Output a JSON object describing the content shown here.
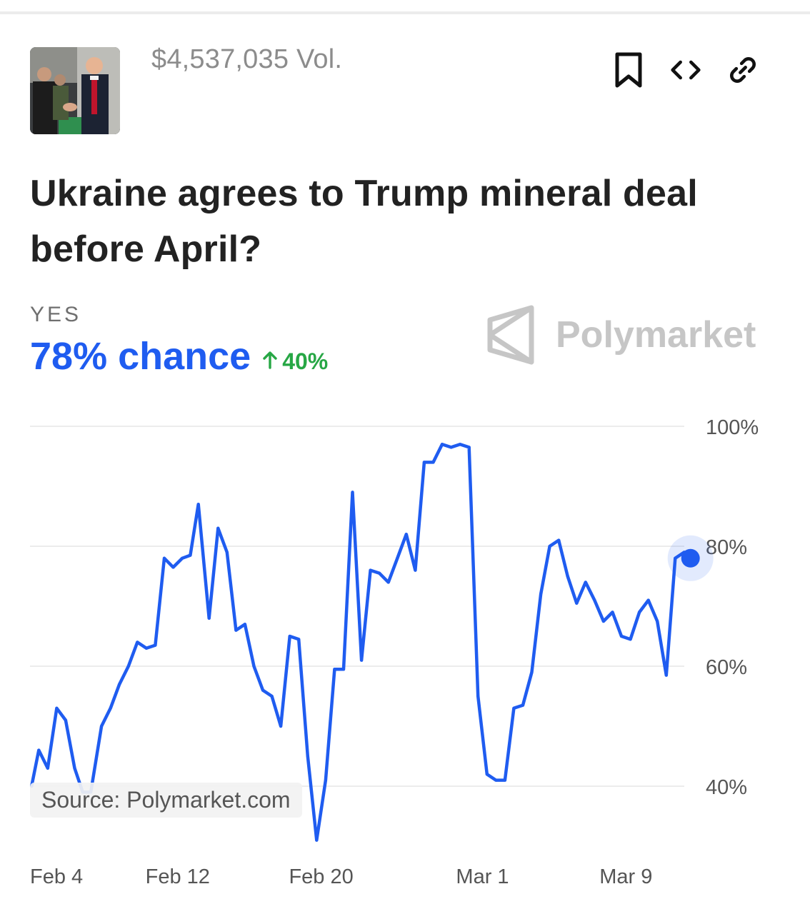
{
  "header": {
    "thumbnail_icon": "market-photo-thumbnail",
    "volume": "$4,537,035 Vol.",
    "actions": [
      {
        "icon": "bookmark-icon"
      },
      {
        "icon": "embed-code-icon"
      },
      {
        "icon": "link-icon"
      }
    ]
  },
  "market": {
    "title": "Ukraine agrees to Trump mineral deal before April?",
    "outcome": "YES",
    "chance": "78% chance",
    "change": "40%",
    "change_icon": "arrow-up-icon",
    "brand": "Polymarket"
  },
  "source": "Source: Polymarket.com",
  "colors": {
    "accent": "#1f5cf0",
    "positive": "#27a745",
    "muted": "#8c8c8c"
  },
  "chart_data": {
    "type": "line",
    "title": "",
    "xlabel": "",
    "ylabel": "",
    "ylim": [
      30,
      100
    ],
    "ytick_values": [
      40,
      60,
      80,
      100
    ],
    "ytick_labels": [
      "40%",
      "60%",
      "80%",
      "100%"
    ],
    "xtick_labels": [
      "Feb 4",
      "Feb 12",
      "Feb 20",
      "Mar 1",
      "Mar 9"
    ],
    "xtick_days": [
      0,
      8,
      16,
      25,
      33
    ],
    "grid": true,
    "series": [
      {
        "x": [
          -0.15,
          0.25,
          0.75,
          1.25,
          1.75,
          2.25,
          2.7,
          3.15,
          3.75,
          4.25,
          4.75,
          5.25,
          5.75,
          6.25,
          6.75,
          7.25,
          7.75,
          8.25,
          8.7,
          9.15,
          9.75,
          10.25,
          10.75,
          11.25,
          11.75,
          12.25,
          12.75,
          13.25,
          13.75,
          14.25,
          14.75,
          15.25,
          15.75,
          16.25,
          16.75,
          17.25,
          17.75,
          18.25,
          18.75,
          19.25,
          19.75,
          20.25,
          20.75,
          21.25,
          21.75,
          22.25,
          22.75,
          23.25,
          23.75,
          24.25,
          24.75,
          25.25,
          25.75,
          26.25,
          26.75,
          27.25,
          27.75,
          28.25,
          28.75,
          29.25,
          29.75,
          30.25,
          30.75,
          31.25,
          31.75,
          32.25,
          32.75,
          33.25,
          33.75,
          34.25,
          34.75,
          35.25,
          35.75,
          36.25,
          36.6
        ],
        "y": [
          40,
          46,
          43,
          53,
          51,
          43,
          39,
          39,
          50,
          53,
          57,
          60,
          64,
          63,
          63.5,
          78,
          76.5,
          78,
          78.5,
          87,
          68,
          83,
          79,
          66,
          67,
          60,
          56,
          55,
          50,
          65,
          64.5,
          45,
          31,
          41,
          59.5,
          59.5,
          89,
          61,
          76,
          75.5,
          74,
          78,
          82,
          76,
          94,
          94,
          97,
          96.5,
          97,
          96.5,
          55,
          42,
          41,
          41,
          53,
          53.5,
          59,
          72,
          80,
          81,
          75,
          70.5,
          74,
          71,
          67.5,
          69,
          65,
          64.5,
          69,
          71,
          67.5,
          58.5,
          78,
          79,
          78
        ]
      }
    ],
    "last_point": {
      "day": 36.6,
      "value": 78
    }
  }
}
